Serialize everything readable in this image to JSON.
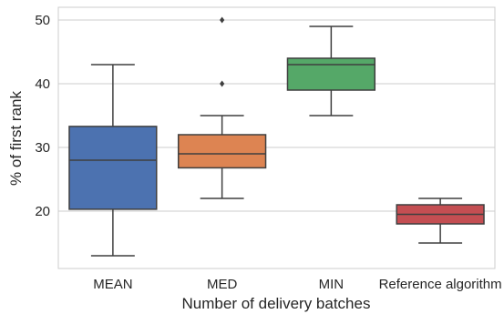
{
  "chart_data": {
    "type": "box",
    "title": "",
    "xlabel": "Number of delivery batches",
    "ylabel": "% of first rank",
    "ylim": [
      11,
      52
    ],
    "yticks": [
      20,
      30,
      40,
      50
    ],
    "grid": "horizontal",
    "categories": [
      "MEAN",
      "MED",
      "MIN",
      "Reference algorithm"
    ],
    "boxes": [
      {
        "category": "MEAN",
        "whisker_low": 13,
        "q1": 20.3,
        "median": 28,
        "q3": 33.3,
        "whisker_high": 43,
        "outliers": [],
        "color": "#4c72b0"
      },
      {
        "category": "MED",
        "whisker_low": 22,
        "q1": 26.8,
        "median": 29,
        "q3": 32,
        "whisker_high": 35,
        "outliers": [
          40,
          50
        ],
        "color": "#dd8452"
      },
      {
        "category": "MIN",
        "whisker_low": 35,
        "q1": 39,
        "median": 43,
        "q3": 44,
        "whisker_high": 49,
        "outliers": [],
        "color": "#55a868"
      },
      {
        "category": "Reference algorithm",
        "whisker_low": 15,
        "q1": 18,
        "median": 19.5,
        "q3": 21,
        "whisker_high": 22,
        "outliers": [],
        "color": "#c44e52"
      }
    ],
    "colors": {
      "grid": "#cccccc",
      "frame": "#cccccc",
      "lines": "#3f3f3f",
      "text": "#262626"
    }
  }
}
